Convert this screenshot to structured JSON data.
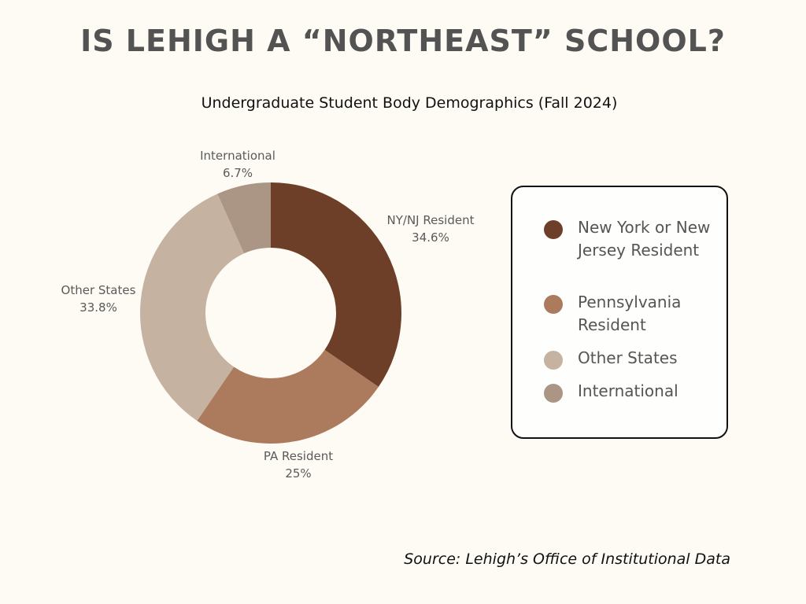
{
  "header": {
    "title": "IS LEHIGH A “NORTHEAST” SCHOOL?"
  },
  "chart_data": {
    "type": "pie",
    "title": "Undergraduate Student Body Demographics (Fall 2024)",
    "donut": true,
    "slices": [
      {
        "label": "NY/NJ Resident",
        "value": 34.6,
        "value_label": "34.6%",
        "legend": "New York or New Jersey Resident",
        "color": "#6E3F28"
      },
      {
        "label": "PA Resident",
        "value": 25,
        "value_label": "25%",
        "legend": "Pennsylvania Resident",
        "color": "#AC7A5C"
      },
      {
        "label": "Other States",
        "value": 33.8,
        "value_label": "33.8%",
        "legend": "Other States",
        "color": "#C5B2A0"
      },
      {
        "label": "International",
        "value": 6.7,
        "value_label": "6.7%",
        "legend": "International",
        "color": "#AB9686"
      }
    ],
    "legend_position": "right"
  },
  "footer": {
    "source": "Source: Lehigh’s Office of Institutional Data"
  }
}
